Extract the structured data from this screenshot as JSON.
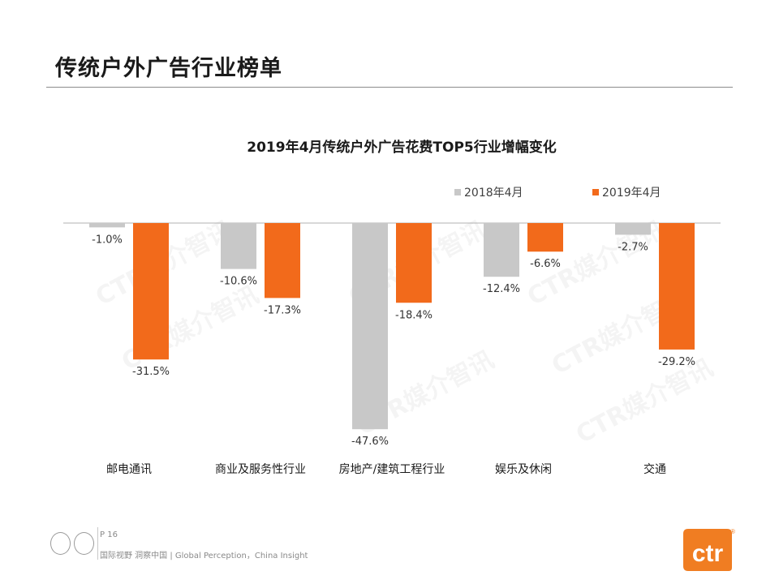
{
  "page": {
    "title": "传统户外广告行业榜单",
    "page_number": "P 16",
    "slogan": "国际视野 洞察中国 | Global Perception，China Insight",
    "watermark_text": "CTR媒介智讯",
    "brand_logo_text": "ctr",
    "brand_logo_mark": "®",
    "brand_color": "#f07d22"
  },
  "chart_data": {
    "type": "bar",
    "title": "2019年4月传统户外广告花费TOP5行业增幅变化",
    "categories": [
      "邮电通讯",
      "商业及服务性行业",
      "房地产/建筑工程行业",
      "娱乐及休闲",
      "交通"
    ],
    "series": [
      {
        "name": "2018年4月",
        "color": "#c8c8c8",
        "values": [
          -1.0,
          -10.6,
          -47.6,
          -12.4,
          -2.7
        ],
        "labels": [
          "-1.0%",
          "-10.6%",
          "-47.6%",
          "-12.4%",
          "-2.7%"
        ]
      },
      {
        "name": "2019年4月",
        "color": "#f26a1b",
        "values": [
          -31.5,
          -17.3,
          -18.4,
          -6.6,
          -29.2
        ],
        "labels": [
          "-31.5%",
          "-17.3%",
          "-18.4%",
          "-6.6%",
          "-29.2%"
        ]
      }
    ],
    "ylim": [
      -50,
      0
    ],
    "legend_position": "top-right",
    "grid": false
  }
}
